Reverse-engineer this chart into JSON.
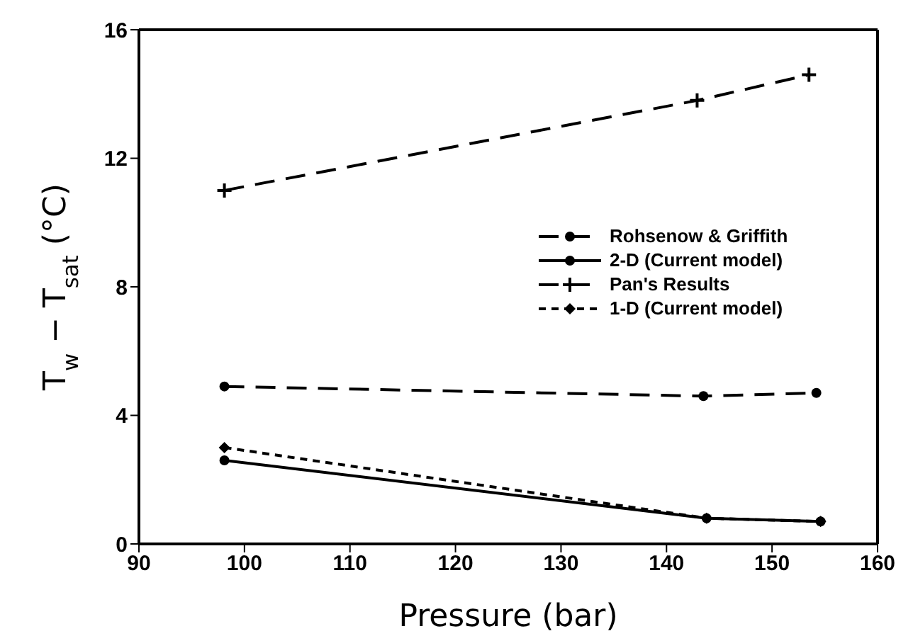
{
  "chart_data": {
    "type": "line",
    "xlabel": "Pressure (bar)",
    "ylabel": "T$_{w}$ − T$_{sat}$  (°C)",
    "xlim": [
      90,
      160
    ],
    "xticks": [
      90,
      100,
      110,
      120,
      130,
      140,
      150,
      160
    ],
    "ylim": [
      0,
      16
    ],
    "yticks": [
      0,
      4,
      8,
      12,
      16
    ],
    "grid": false,
    "legend": "right",
    "series": [
      {
        "name": "Rohsenow & Griffith",
        "color": "#000000",
        "x": [
          98.1,
          143.5,
          154.2
        ],
        "values": [
          4.9,
          4.6,
          4.7
        ],
        "marker": "circle",
        "line_style": "dashed"
      },
      {
        "name": "2-D (Current model)",
        "color": "#000000",
        "x": [
          98.1,
          143.8,
          154.6
        ],
        "values": [
          2.6,
          0.8,
          0.7
        ],
        "marker": "circle",
        "line_style": "solid"
      },
      {
        "name": "Pan's Results",
        "color": "#000000",
        "x": [
          98.1,
          142.9,
          153.5
        ],
        "values": [
          11.0,
          13.8,
          14.6
        ],
        "marker": "cross",
        "line_style": "dashed"
      },
      {
        "name": "1-D (Current model)",
        "color": "#000000",
        "x": [
          98.1,
          143.8,
          154.6
        ],
        "values": [
          3.0,
          0.8,
          0.7
        ],
        "marker": "diamond",
        "line_style": "dotted"
      }
    ]
  }
}
